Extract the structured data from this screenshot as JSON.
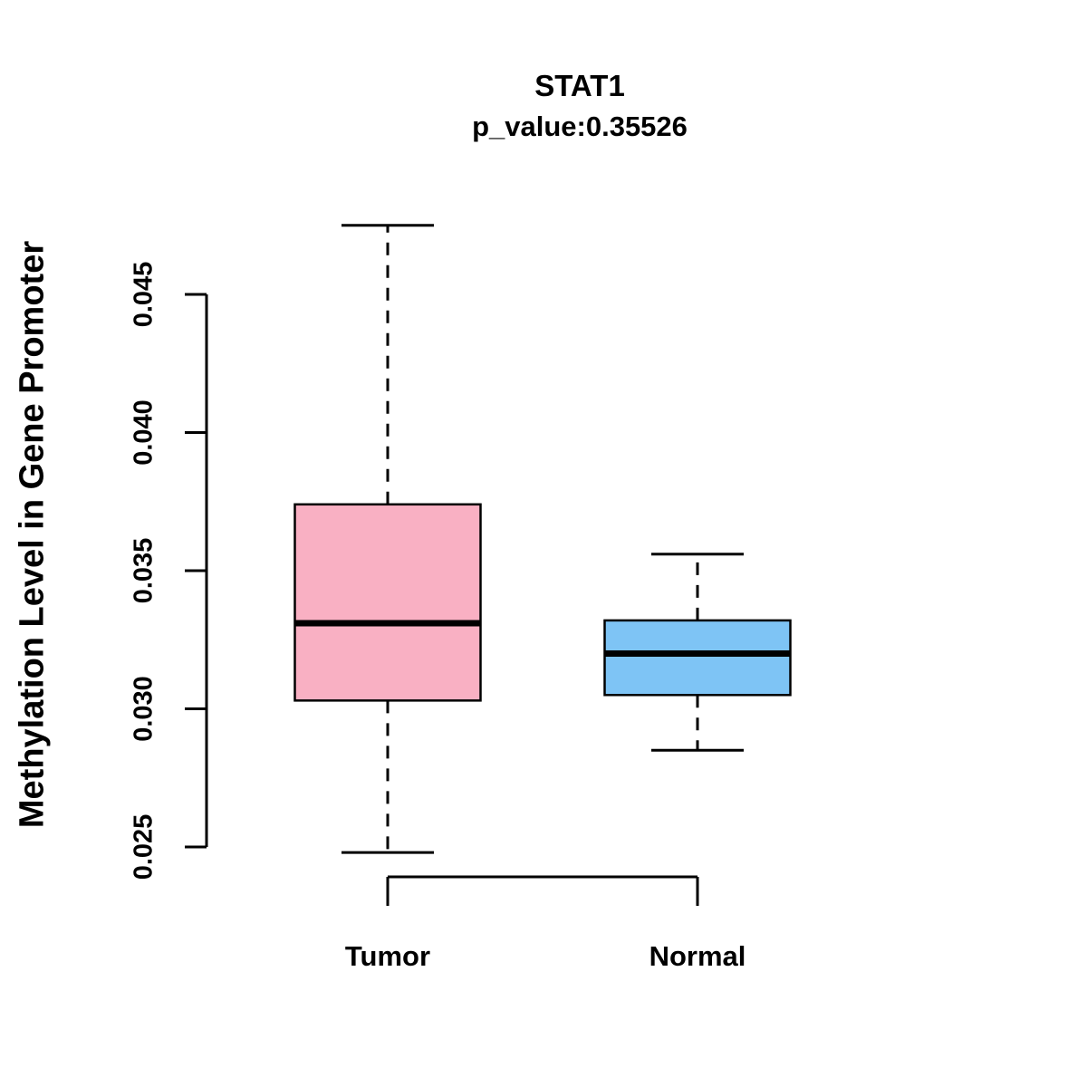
{
  "header": {
    "title": "STAT1",
    "subtitle": "p_value:0.35526"
  },
  "chart_data": {
    "type": "boxplot",
    "title": "STAT1",
    "subtitle": "p_value:0.35526",
    "ylabel": "Methylation Level in Gene Promoter",
    "xlabel": "",
    "categories": [
      "Tumor",
      "Normal"
    ],
    "series": [
      {
        "name": "Tumor",
        "min": 0.0248,
        "q1": 0.0303,
        "median": 0.0331,
        "q3": 0.0374,
        "max": 0.0475,
        "color": "#F9B0C3"
      },
      {
        "name": "Normal",
        "min": 0.0285,
        "q1": 0.0305,
        "median": 0.032,
        "q3": 0.0332,
        "max": 0.0356,
        "color": "#7EC4F5"
      }
    ],
    "yticks": [
      0.025,
      0.03,
      0.035,
      0.04,
      0.045
    ],
    "ytick_labels": [
      "0.025",
      "0.030",
      "0.035",
      "0.040",
      "0.045"
    ],
    "ylim": [
      0.0245,
      0.0478
    ],
    "grid": false,
    "legend": "none",
    "axis_color": "#000000",
    "median_color": "#000000",
    "whisker_style": "dashed"
  }
}
